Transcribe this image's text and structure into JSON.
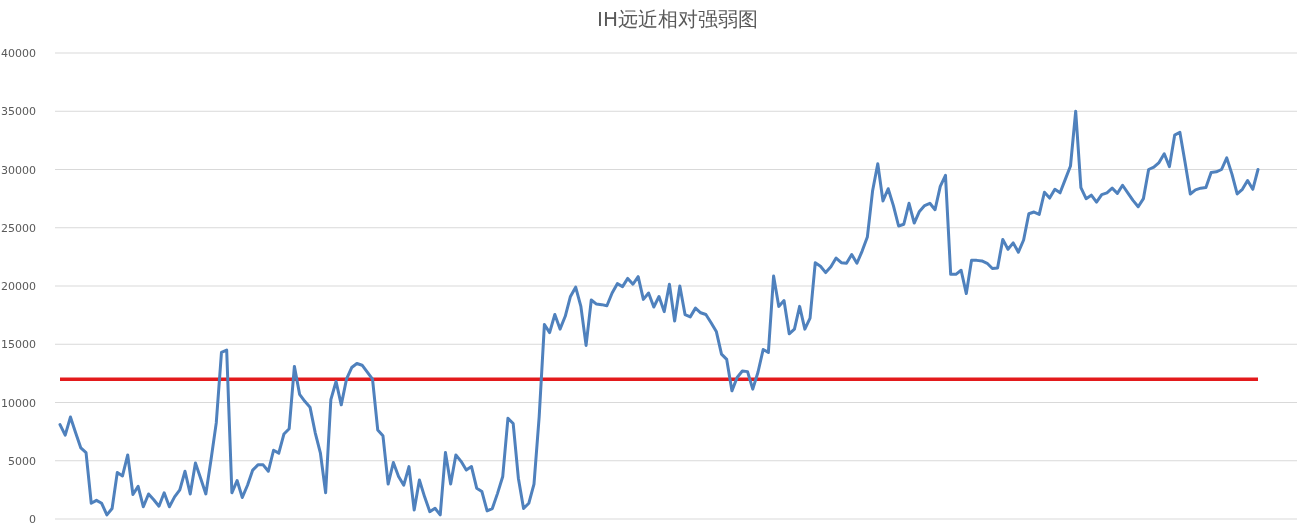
{
  "chart_data": {
    "type": "line",
    "title": "IH远近相对强弱图",
    "categories": [
      null,
      null,
      null,
      null,
      null,
      null,
      null,
      null,
      null,
      null,
      null,
      null,
      null,
      null,
      null,
      null,
      null,
      null,
      null,
      null,
      null,
      null,
      null,
      null,
      null,
      null,
      null,
      null,
      null,
      null,
      null,
      null,
      null,
      null,
      null,
      null,
      null,
      null,
      null,
      null,
      null,
      null,
      null,
      null,
      null,
      null,
      null,
      null,
      null,
      null,
      null,
      null,
      null,
      null,
      null,
      null,
      null,
      null,
      null,
      null,
      null,
      null,
      null,
      null,
      null,
      null,
      null,
      null,
      null,
      null,
      null,
      null,
      null,
      null,
      null,
      null,
      null,
      null,
      null,
      null,
      null,
      null,
      null,
      null,
      null,
      null,
      null,
      null,
      null,
      null,
      null,
      null,
      null,
      null,
      null,
      null,
      null,
      null,
      null,
      null,
      null,
      null,
      null,
      null,
      null,
      null,
      null,
      null,
      null,
      null,
      null,
      null,
      null,
      null,
      null,
      null,
      null,
      null,
      null,
      null,
      null,
      null,
      null,
      null,
      null,
      null,
      null,
      null,
      null,
      null,
      null,
      null,
      null,
      null,
      null,
      null,
      null,
      null,
      null,
      null,
      null,
      null,
      null,
      null,
      null,
      null,
      null,
      null,
      null,
      null,
      null,
      null,
      null,
      null,
      null,
      null,
      null,
      null,
      null,
      null,
      null,
      null,
      null,
      null,
      null,
      null,
      null,
      null,
      null,
      null,
      null,
      null,
      null,
      null,
      null,
      null,
      null,
      null,
      null,
      null,
      null,
      null,
      null,
      null,
      null,
      null,
      null,
      null,
      null,
      null,
      null,
      null,
      null,
      null,
      null,
      null,
      null,
      null,
      null,
      null,
      null,
      null,
      null,
      null,
      null,
      null,
      null,
      null,
      null,
      null,
      null,
      null,
      null,
      null,
      null,
      null,
      null,
      null,
      null,
      null,
      null,
      null,
      null,
      null,
      null,
      null,
      null,
      null,
      null,
      null,
      null
    ],
    "values": [
      8100,
      7200,
      8750,
      7400,
      6100,
      5700,
      1350,
      1600,
      1350,
      350,
      900,
      4000,
      3700,
      5500,
      2100,
      2800,
      1050,
      2150,
      1650,
      1100,
      2250,
      1050,
      1900,
      2500,
      4100,
      2150,
      4800,
      3500,
      2150,
      5100,
      8250,
      14300,
      14500,
      2250,
      3300,
      1850,
      2900,
      4200,
      4650,
      4650,
      4100,
      5900,
      5650,
      7300,
      7750,
      13100,
      10700,
      10100,
      9600,
      7400,
      5650,
      2250,
      10250,
      11800,
      9800,
      12000,
      13000,
      13350,
      13200,
      12600,
      12000,
      7650,
      7150,
      3000,
      4850,
      3650,
      2900,
      4500,
      770,
      3350,
      1900,
      630,
      920,
      350,
      5700,
      3000,
      5500,
      4950,
      4200,
      4500,
      2650,
      2350,
      700,
      900,
      2200,
      3650,
      8650,
      8200,
      3500,
      900,
      1350,
      3000,
      8800,
      16700,
      16000,
      17550,
      16300,
      17400,
      19100,
      19900,
      18250,
      14900,
      18800,
      18450,
      18400,
      18300,
      19400,
      20200,
      19950,
      20650,
      20150,
      20800,
      18850,
      19400,
      18200,
      19100,
      17800,
      20150,
      17000,
      20000,
      17550,
      17350,
      18100,
      17700,
      17550,
      16850,
      16100,
      14150,
      13700,
      11000,
      12150,
      12700,
      12650,
      11150,
      12600,
      14550,
      14300,
      20850,
      18250,
      18750,
      15900,
      16300,
      18250,
      16300,
      17250,
      22000,
      21700,
      21150,
      21650,
      22400,
      22000,
      21950,
      22700,
      21950,
      23000,
      24200,
      28150,
      30500,
      27300,
      28350,
      26900,
      25150,
      25300,
      27100,
      25400,
      26400,
      26900,
      27100,
      26550,
      28550,
      29500,
      21000,
      21000,
      21350,
      19350,
      22200,
      22200,
      22150,
      21950,
      21500,
      21550,
      24000,
      23150,
      23700,
      22900,
      23950,
      26200,
      26350,
      26150,
      28050,
      27550,
      28300,
      28000,
      29150,
      30300,
      35000,
      28450,
      27500,
      27800,
      27200,
      27850,
      28000,
      28400,
      27950,
      28650,
      28000,
      27350,
      26800,
      27500,
      30000,
      30200,
      30600,
      31350,
      30250,
      32950,
      33200,
      30600,
      27900,
      28250,
      28400,
      28450,
      29750,
      29800,
      30000,
      31000,
      29600,
      27900,
      28300,
      29050,
      28300,
      30000
    ],
    "color": "#4f81bd",
    "ylim": [
      0,
      40000
    ],
    "yticks": [
      0,
      5000,
      10000,
      15000,
      20000,
      25000,
      30000,
      35000,
      40000
    ],
    "grid": "y",
    "ref_lines": [
      {
        "axis": "y",
        "value": 12000,
        "color": "#e31a1c"
      }
    ]
  }
}
